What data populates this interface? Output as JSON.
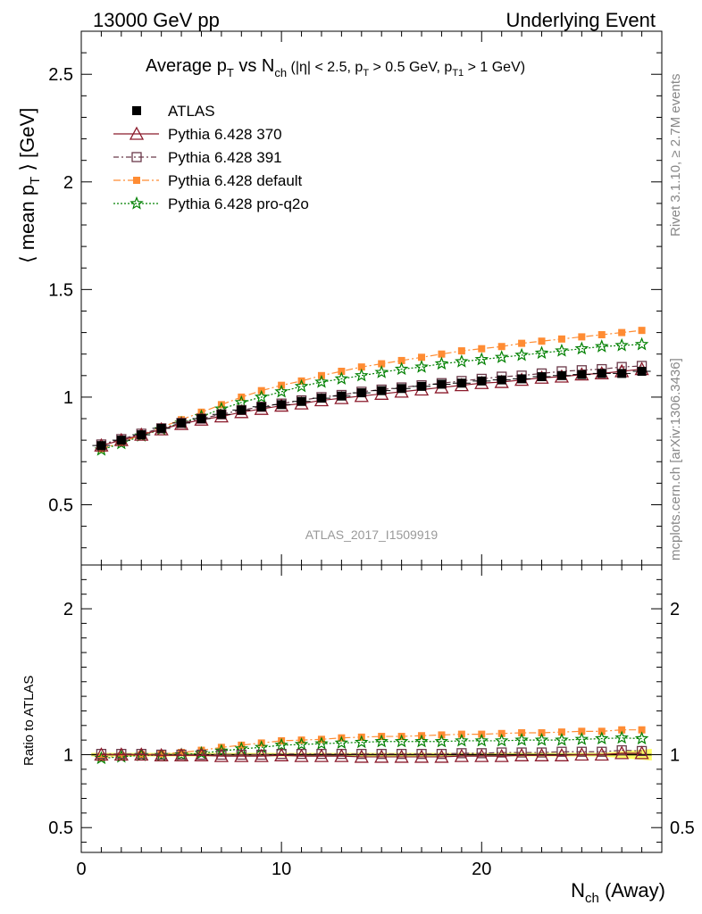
{
  "header": {
    "left": "13000 GeV pp",
    "right": "Underlying Event"
  },
  "side": {
    "rivet": "Rivet 3.1.10, ≥ 2.7M events",
    "mcplots": "mcplots.cern.ch [arXiv:1306.3436]"
  },
  "watermark": "ATLAS_2017_I1509919",
  "colors": {
    "data": "#000000",
    "p370": "#8b1a2b",
    "p391": "#6b3a4a",
    "pdefault": "#ff8c33",
    "pq2o": "#008000",
    "band": "#ffff66"
  },
  "chart_data": [
    {
      "type": "line",
      "title": "Average p_T vs N_ch (|η| < 2.5, p_T > 0.5 GeV, p_T1 > 1 GeV)",
      "title_parts": {
        "a": "Average p",
        "a_sub": "T",
        "b": " vs N",
        "b_sub": "ch",
        "c": " (|η| < 2.5, p",
        "c_sub": "T",
        "d": " > 0.5 GeV, p",
        "d_sub": "T1",
        "e": " > 1 GeV)"
      },
      "ylabel": "⟨ mean p_T ⟩ [GeV]",
      "ylabel_parts": {
        "a": "⟨ mean p",
        "sub": "T",
        "b": " ⟩ [GeV]"
      },
      "xlim": [
        0,
        29
      ],
      "ylim": [
        0.22,
        2.7
      ],
      "yticks": [
        0.5,
        1,
        1.5,
        2,
        2.5
      ],
      "ytick_labels": [
        "0.5",
        "1",
        "1.5",
        "2",
        "2.5"
      ],
      "legend_position": "top-left",
      "x": [
        1,
        2,
        3,
        4,
        5,
        6,
        7,
        8,
        9,
        10,
        11,
        12,
        13,
        14,
        15,
        16,
        17,
        18,
        19,
        20,
        21,
        22,
        23,
        24,
        25,
        26,
        27,
        28
      ],
      "series": [
        {
          "key": "data",
          "name": "ATLAS",
          "values": [
            0.775,
            0.8,
            0.825,
            0.855,
            0.88,
            0.9,
            0.92,
            0.94,
            0.955,
            0.965,
            0.98,
            0.995,
            1.005,
            1.02,
            1.03,
            1.04,
            1.05,
            1.06,
            1.065,
            1.075,
            1.08,
            1.085,
            1.095,
            1.1,
            1.105,
            1.11,
            1.11,
            1.12
          ]
        },
        {
          "key": "p370",
          "name": "Pythia 6.428 370",
          "values": [
            0.775,
            0.8,
            0.825,
            0.85,
            0.875,
            0.895,
            0.91,
            0.93,
            0.945,
            0.96,
            0.97,
            0.985,
            0.995,
            1.005,
            1.015,
            1.025,
            1.035,
            1.045,
            1.055,
            1.065,
            1.07,
            1.08,
            1.09,
            1.095,
            1.105,
            1.11,
            1.12,
            1.13
          ]
        },
        {
          "key": "p391",
          "name": "Pythia 6.428 391",
          "values": [
            0.78,
            0.805,
            0.83,
            0.855,
            0.88,
            0.9,
            0.92,
            0.94,
            0.955,
            0.97,
            0.985,
            1.0,
            1.01,
            1.025,
            1.035,
            1.045,
            1.055,
            1.065,
            1.075,
            1.085,
            1.095,
            1.1,
            1.11,
            1.12,
            1.125,
            1.13,
            1.14,
            1.145
          ]
        },
        {
          "key": "pdefault",
          "name": "Pythia 6.428 default",
          "values": [
            0.76,
            0.79,
            0.825,
            0.86,
            0.895,
            0.93,
            0.965,
            1.0,
            1.03,
            1.055,
            1.075,
            1.1,
            1.12,
            1.14,
            1.155,
            1.17,
            1.185,
            1.2,
            1.215,
            1.225,
            1.235,
            1.25,
            1.26,
            1.27,
            1.28,
            1.29,
            1.3,
            1.31
          ]
        },
        {
          "key": "pq2o",
          "name": "Pythia 6.428 pro-q2o",
          "values": [
            0.755,
            0.785,
            0.82,
            0.85,
            0.88,
            0.91,
            0.945,
            0.975,
            1.0,
            1.025,
            1.05,
            1.07,
            1.085,
            1.1,
            1.115,
            1.13,
            1.14,
            1.155,
            1.165,
            1.175,
            1.185,
            1.195,
            1.205,
            1.215,
            1.225,
            1.235,
            1.24,
            1.245
          ]
        }
      ]
    },
    {
      "type": "line",
      "ylabel": "Ratio to ATLAS",
      "xlabel": "N_ch (Away)",
      "xlabel_parts": {
        "a": "N",
        "sub": "ch",
        "b": " (Away)"
      },
      "xlim": [
        0,
        29
      ],
      "xticks": [
        0,
        10,
        20
      ],
      "xtick_labels": [
        "0",
        "10",
        "20"
      ],
      "ylim": [
        0.33,
        2.3
      ],
      "yticks": [
        0.5,
        1,
        2
      ],
      "ytick_labels": [
        "0.5",
        "1",
        "2"
      ],
      "x": [
        1,
        2,
        3,
        4,
        5,
        6,
        7,
        8,
        9,
        10,
        11,
        12,
        13,
        14,
        15,
        16,
        17,
        18,
        19,
        20,
        21,
        22,
        23,
        24,
        25,
        26,
        27,
        28
      ],
      "series": [
        {
          "key": "p370",
          "name": "Pythia 6.428 370",
          "values": [
            1.0,
            1.0,
            1.0,
            0.995,
            0.995,
            0.995,
            0.99,
            0.99,
            0.99,
            0.995,
            0.99,
            0.99,
            0.99,
            0.985,
            0.985,
            0.985,
            0.985,
            0.985,
            0.99,
            0.99,
            0.99,
            0.995,
            0.995,
            0.995,
            1.0,
            1.0,
            1.01,
            1.01
          ]
        },
        {
          "key": "p391",
          "name": "Pythia 6.428 391",
          "values": [
            1.005,
            1.005,
            1.005,
            1.0,
            1.0,
            1.0,
            1.0,
            1.0,
            1.0,
            1.005,
            1.005,
            1.005,
            1.005,
            1.005,
            1.005,
            1.005,
            1.005,
            1.005,
            1.01,
            1.01,
            1.015,
            1.015,
            1.015,
            1.02,
            1.02,
            1.02,
            1.03,
            1.025
          ]
        },
        {
          "key": "pdefault",
          "name": "Pythia 6.428 default",
          "values": [
            0.98,
            0.99,
            1.0,
            1.005,
            1.015,
            1.03,
            1.05,
            1.065,
            1.08,
            1.095,
            1.1,
            1.105,
            1.115,
            1.12,
            1.125,
            1.125,
            1.13,
            1.135,
            1.14,
            1.14,
            1.145,
            1.15,
            1.15,
            1.155,
            1.16,
            1.16,
            1.17,
            1.17
          ]
        },
        {
          "key": "pq2o",
          "name": "Pythia 6.428 pro-q2o",
          "values": [
            0.975,
            0.985,
            0.995,
            0.995,
            1.0,
            1.01,
            1.025,
            1.04,
            1.05,
            1.065,
            1.07,
            1.075,
            1.08,
            1.085,
            1.09,
            1.09,
            1.09,
            1.09,
            1.095,
            1.095,
            1.095,
            1.1,
            1.1,
            1.1,
            1.105,
            1.11,
            1.115,
            1.11
          ]
        }
      ]
    }
  ]
}
